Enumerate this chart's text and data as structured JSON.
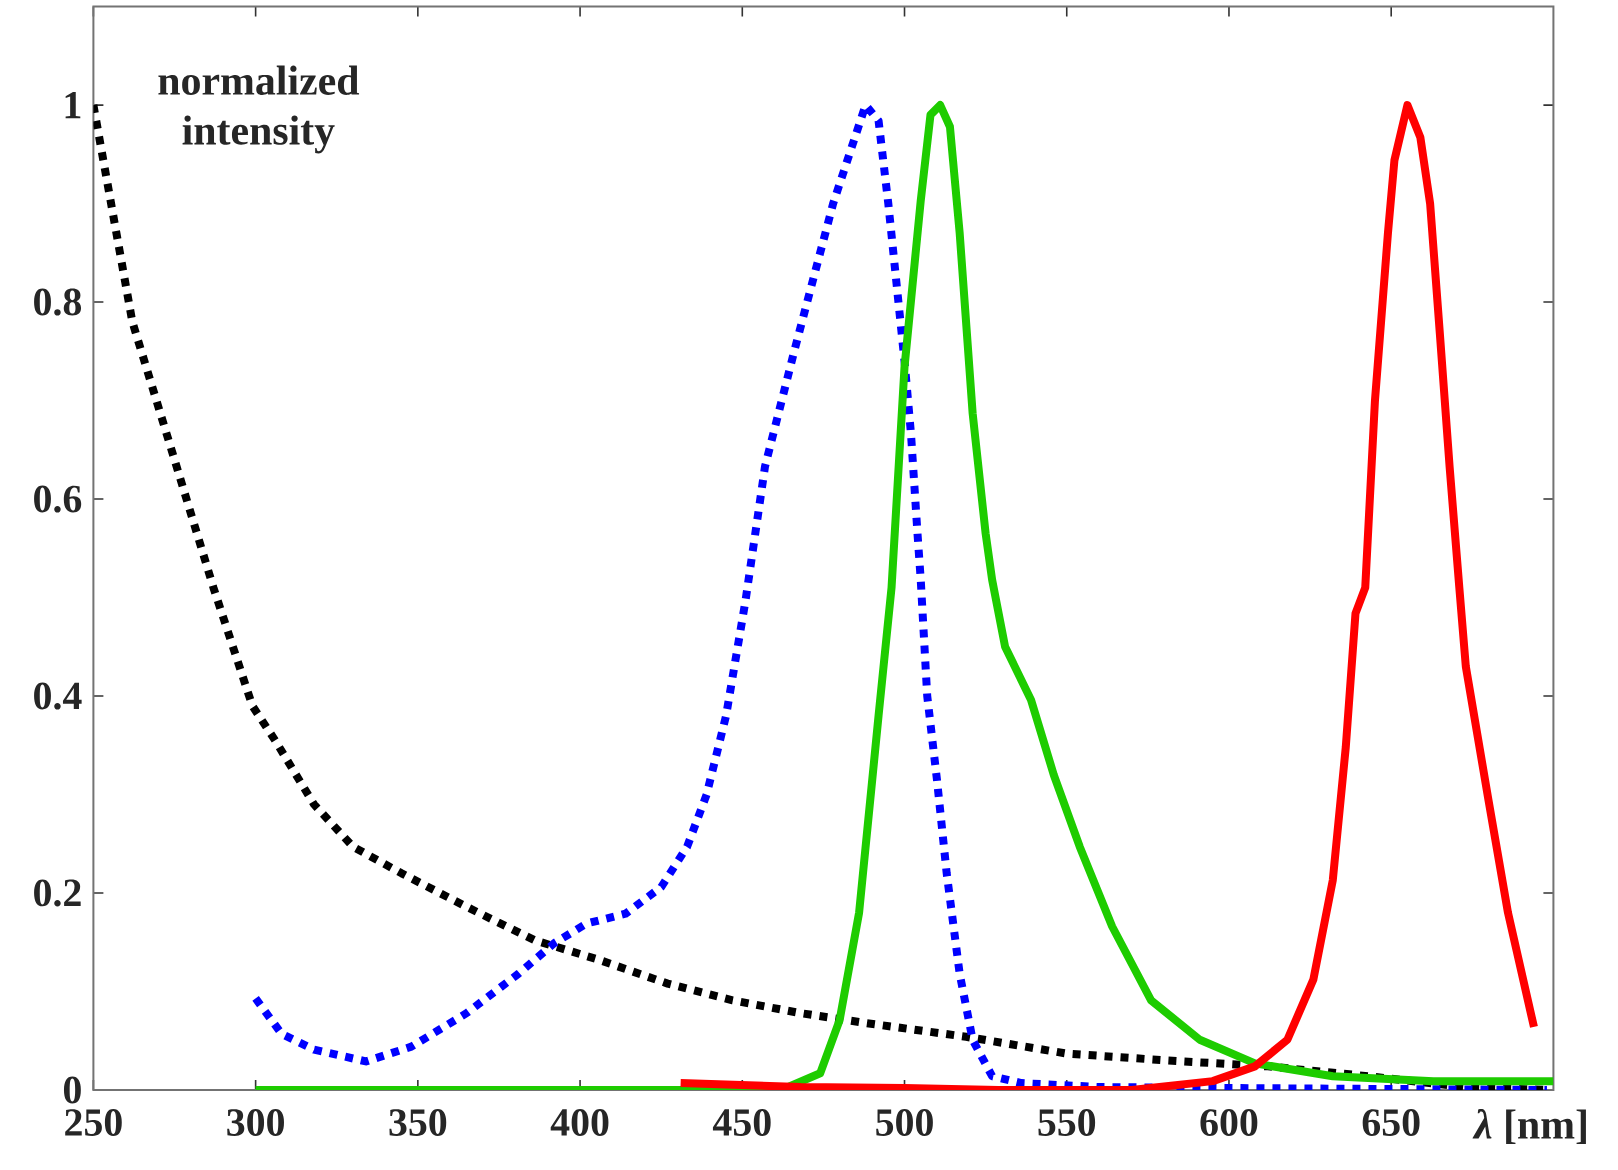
{
  "chart_data": {
    "type": "line",
    "xlabel": "*λ* [nm]",
    "ylabel": "normalized intensity",
    "xlim": [
      250,
      700
    ],
    "ylim": [
      0,
      1.1
    ],
    "xticks": [
      250,
      300,
      350,
      400,
      450,
      500,
      550,
      600,
      650
    ],
    "yticks": [
      0,
      0.2,
      0.4,
      0.6,
      0.8,
      1
    ],
    "series": [
      {
        "color": "#000000",
        "line_style": "dotted",
        "x": [
          250,
          262,
          275,
          287,
          299,
          306,
          318,
          330,
          345,
          365,
          386,
          406,
          427,
          447,
          468,
          488,
          519,
          550,
          581,
          612,
          643,
          673,
          698
        ],
        "values": [
          1.0,
          0.78,
          0.64,
          0.51,
          0.39,
          0.355,
          0.29,
          0.247,
          0.22,
          0.186,
          0.152,
          0.132,
          0.108,
          0.091,
          0.078,
          0.068,
          0.054,
          0.037,
          0.03,
          0.024,
          0.014,
          0.003,
          0.0
        ]
      },
      {
        "color": "#0000ff",
        "line_style": "dotted",
        "x": [
          300,
          308,
          318,
          334,
          348,
          365,
          381,
          392,
          402,
          414,
          425,
          433,
          439,
          445,
          451,
          457,
          466,
          474,
          478,
          483,
          488,
          492,
          495,
          497,
          500,
          502,
          504,
          505,
          507,
          510,
          513,
          517,
          521,
          527,
          536,
          560,
          600,
          650,
          698
        ],
        "values": [
          0.093,
          0.057,
          0.041,
          0.029,
          0.044,
          0.078,
          0.118,
          0.149,
          0.169,
          0.179,
          0.206,
          0.247,
          0.3,
          0.38,
          0.497,
          0.633,
          0.75,
          0.85,
          0.9,
          0.95,
          1.0,
          0.984,
          0.9,
          0.836,
          0.74,
          0.666,
          0.565,
          0.518,
          0.4,
          0.315,
          0.22,
          0.118,
          0.051,
          0.014,
          0.007,
          0.003,
          0.002,
          0.001,
          0.0
        ]
      },
      {
        "color": "#1ecc00",
        "line_style": "solid",
        "x": [
          300,
          350,
          400,
          450,
          462,
          474,
          480,
          486,
          492,
          496,
          500,
          505,
          508,
          511,
          514,
          517,
          521,
          525,
          527,
          531,
          539,
          546,
          554,
          564,
          576,
          591,
          608,
          632,
          663,
          700
        ],
        "values": [
          0,
          0,
          0,
          0,
          0,
          0.017,
          0.071,
          0.18,
          0.38,
          0.51,
          0.734,
          0.903,
          0.99,
          1.0,
          0.978,
          0.87,
          0.687,
          0.565,
          0.518,
          0.45,
          0.396,
          0.32,
          0.247,
          0.166,
          0.091,
          0.051,
          0.027,
          0.014,
          0.009,
          0.009
        ]
      },
      {
        "color": "#ff0000",
        "line_style": "solid",
        "x": [
          431,
          468,
          500,
          529,
          570,
          595,
          608,
          618,
          626,
          632,
          636,
          639,
          642,
          645,
          649,
          651,
          655,
          659,
          662,
          665,
          668,
          671,
          673,
          680,
          686,
          694
        ],
        "values": [
          0.007,
          0.003,
          0.002,
          0.0,
          0.0,
          0.009,
          0.024,
          0.051,
          0.112,
          0.213,
          0.348,
          0.484,
          0.51,
          0.7,
          0.87,
          0.944,
          1.0,
          0.967,
          0.9,
          0.768,
          0.633,
          0.51,
          0.43,
          0.294,
          0.18,
          0.064
        ]
      }
    ]
  }
}
